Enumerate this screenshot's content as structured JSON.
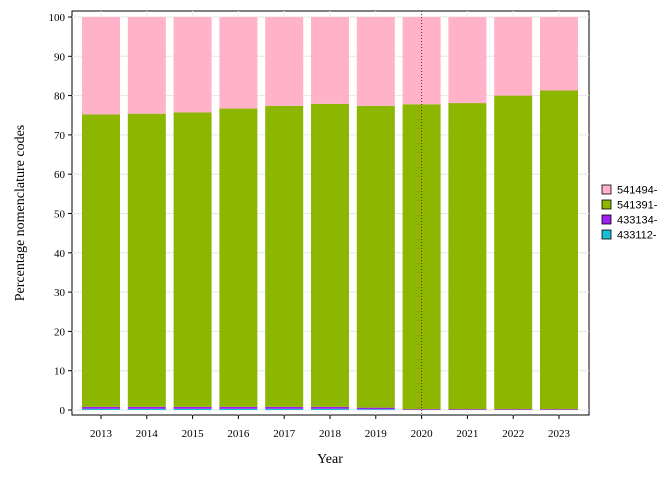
{
  "chart_data": {
    "type": "bar",
    "stacked": true,
    "percent": true,
    "xlabel": "Year",
    "ylabel": "Percentage nomenclature codes",
    "ylim": [
      0,
      100
    ],
    "yticks": [
      0,
      10,
      20,
      30,
      40,
      50,
      60,
      70,
      80,
      90,
      100
    ],
    "grid": true,
    "legend_position": "right",
    "reference_line": {
      "x": "2020",
      "style": "dotted",
      "color": "#8b1a1a"
    },
    "categories": [
      "2013",
      "2014",
      "2015",
      "2016",
      "2017",
      "2018",
      "2019",
      "2020",
      "2021",
      "2022",
      "2023"
    ],
    "series": [
      {
        "name": "433112-",
        "color": "#17becf",
        "values": [
          0.3,
          0.3,
          0.3,
          0.3,
          0.3,
          0.3,
          0.2,
          0.0,
          0.0,
          0.0,
          0.0
        ]
      },
      {
        "name": "433134-",
        "color": "#a020f0",
        "values": [
          0.5,
          0.5,
          0.5,
          0.5,
          0.5,
          0.5,
          0.4,
          0.2,
          0.2,
          0.2,
          0.2
        ]
      },
      {
        "name": "541391-",
        "color": "#8db600",
        "values": [
          74.4,
          74.6,
          74.9,
          75.9,
          76.6,
          77.1,
          76.8,
          77.6,
          77.9,
          79.8,
          81.1
        ]
      },
      {
        "name": "541494-",
        "color": "#ffb2c8",
        "values": [
          24.8,
          24.6,
          24.3,
          23.3,
          22.6,
          22.1,
          22.6,
          22.2,
          21.9,
          20.0,
          18.7
        ]
      }
    ]
  }
}
